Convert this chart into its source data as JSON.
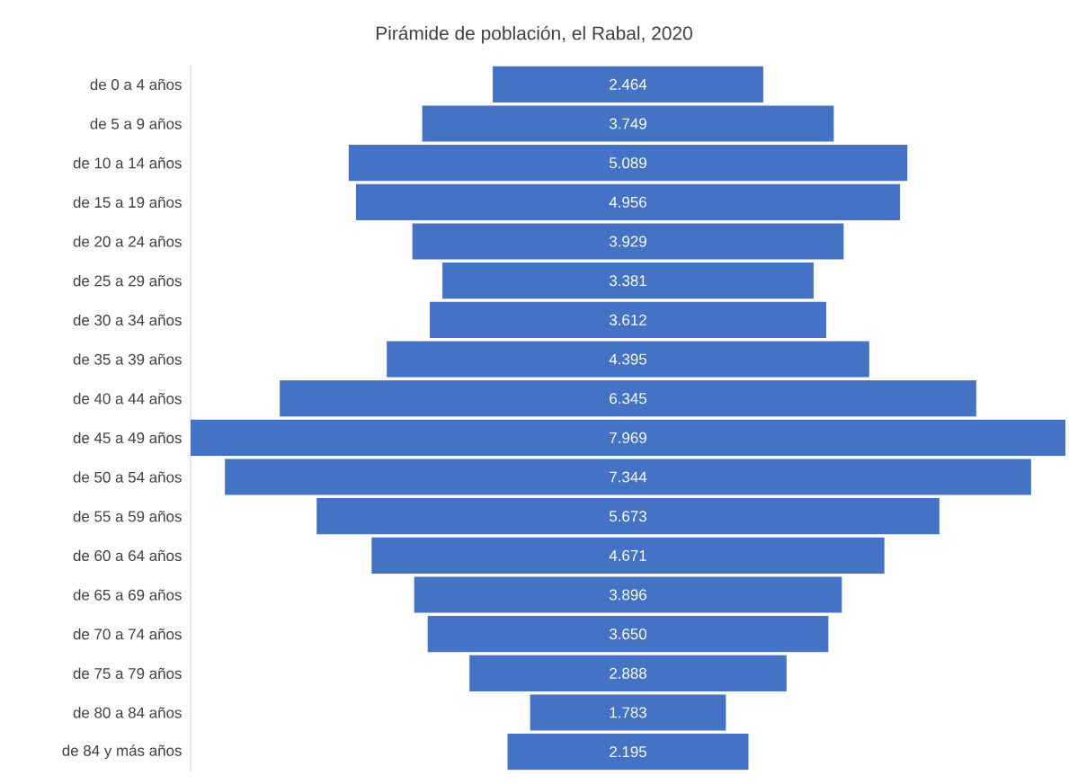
{
  "chart_data": {
    "type": "other",
    "title": "Pirámide de población, el Rabal, 2020",
    "categories": [
      "de 0 a 4 años",
      "de 5 a 9 años",
      "de 10 a 14 años",
      "de 15 a 19 años",
      "de 20 a 24 años",
      "de 25 a 29 años",
      "de 30 a 34 años",
      "de 35 a 39 años",
      "de 40 a 44 años",
      "de 45 a 49 años",
      "de 50 a 54 años",
      "de 55 a 59 años",
      "de 60 a 64 años",
      "de 65 a 69 años",
      "de 70 a 74 años",
      "de 75 a 79 años",
      "de 80 a 84 años",
      "de 84 y más años"
    ],
    "values": [
      2464,
      3749,
      5089,
      4956,
      3929,
      3381,
      3612,
      4395,
      6345,
      7969,
      7344,
      5673,
      4671,
      3896,
      3650,
      2888,
      1783,
      2195
    ],
    "value_labels": [
      "2.464",
      "3.749",
      "5.089",
      "4.956",
      "3.929",
      "3.381",
      "3.612",
      "4.395",
      "6.345",
      "7.969",
      "7.344",
      "5.673",
      "4.671",
      "3.896",
      "3.650",
      "2.888",
      "1.783",
      "2.195"
    ],
    "color": "#4472c4"
  }
}
